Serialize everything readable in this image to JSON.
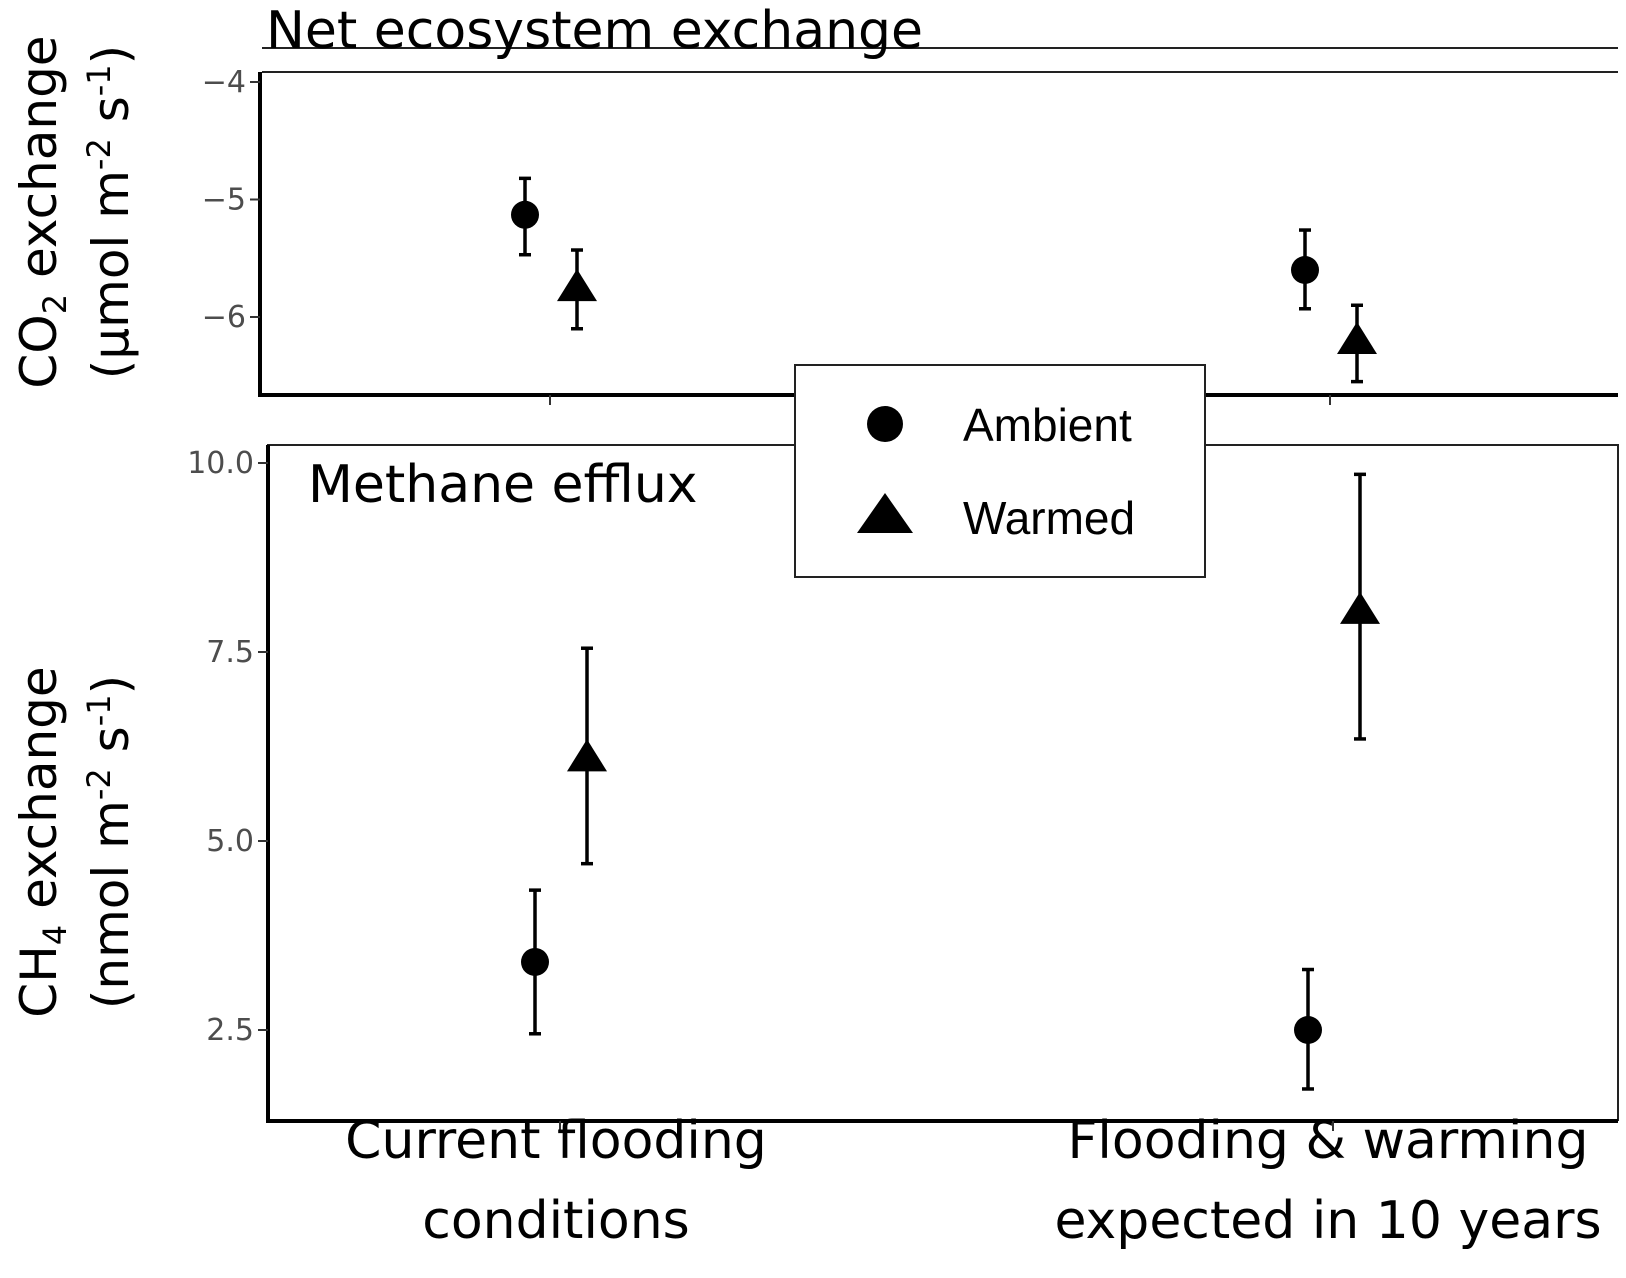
{
  "colors": {
    "marker": "#000000",
    "axis": "#000000",
    "tick_text": "#4d4d4d"
  },
  "legend": {
    "placement": "center-overlapping-panels",
    "entries": [
      {
        "label": "Ambient",
        "shape": "circle"
      },
      {
        "label": "Warmed",
        "shape": "triangle"
      }
    ]
  },
  "chart_data": [
    {
      "type": "scatter",
      "title": "Net ecosystem exchange",
      "ylabel": {
        "line1_main": "CO",
        "line1_sub": "2",
        "line1_rest": " exchange",
        "line2_main": "(µmol m",
        "line2_sup1": "-2",
        "line2_mid": " s",
        "line2_sup2": "-1",
        "line2_end": ")"
      },
      "ylim": [
        -6.65,
        -3.95
      ],
      "yticks": [
        -4,
        -5,
        -6
      ],
      "ytick_labels": [
        "−4",
        "−5",
        "−6"
      ],
      "categories": [
        "Current flooding conditions",
        "Flooding & warming expected in 10 years"
      ],
      "series": [
        {
          "name": "Ambient",
          "shape": "circle",
          "values": [
            -5.13,
            -5.6
          ],
          "lower": [
            -5.47,
            -5.93
          ],
          "upper": [
            -4.82,
            -5.26
          ]
        },
        {
          "name": "Warmed",
          "shape": "triangle",
          "values": [
            -5.75,
            -6.2
          ],
          "lower": [
            -6.1,
            -6.55
          ],
          "upper": [
            -5.43,
            -5.9
          ]
        }
      ]
    },
    {
      "type": "scatter",
      "title": "Methane efflux",
      "ylabel": {
        "line1_main": "CH",
        "line1_sub": "4",
        "line1_rest": " exchange",
        "line2_main": "(nmol m",
        "line2_sup1": "-2",
        "line2_mid": " s",
        "line2_sup2": "-1",
        "line2_end": ")"
      },
      "ylim": [
        1.3,
        10.2
      ],
      "yticks": [
        2.5,
        5.0,
        7.5,
        10.0
      ],
      "ytick_labels": [
        "2.5",
        "5.0",
        "7.5",
        "10.0"
      ],
      "categories": [
        "Current flooding conditions",
        "Flooding & warming expected in 10 years"
      ],
      "category_labels": [
        [
          "Current flooding",
          "conditions"
        ],
        [
          "Flooding & warming",
          "expected in 10 years"
        ]
      ],
      "series": [
        {
          "name": "Ambient",
          "shape": "circle",
          "values": [
            3.4,
            2.5
          ],
          "lower": [
            2.45,
            1.72
          ],
          "upper": [
            4.35,
            3.3
          ]
        },
        {
          "name": "Warmed",
          "shape": "triangle",
          "values": [
            6.1,
            8.05
          ],
          "lower": [
            4.7,
            6.35
          ],
          "upper": [
            7.55,
            9.85
          ]
        }
      ]
    }
  ]
}
